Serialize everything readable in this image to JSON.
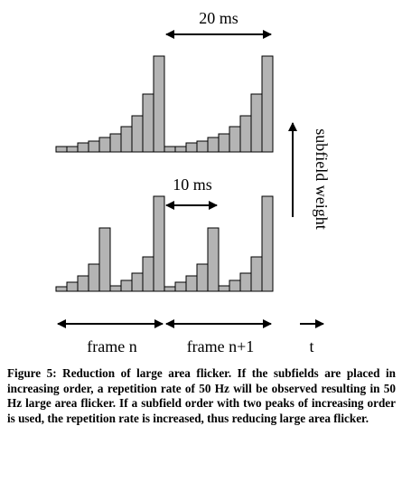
{
  "figure": {
    "top_interval": "20 ms",
    "bottom_interval": "10 ms",
    "axis_label": "subfield weight",
    "frame_labels": [
      "frame n",
      "frame n+1",
      "t"
    ],
    "caption": "Figure 5: Reduction of large area flicker. If the subfields are placed in increasing order, a repetition rate of 50 Hz will be observed resulting in 50 Hz large area flicker. If a subfield order with two peaks of increasing order is used, the repetition rate is increased, thus reducing large area flicker."
  }
}
